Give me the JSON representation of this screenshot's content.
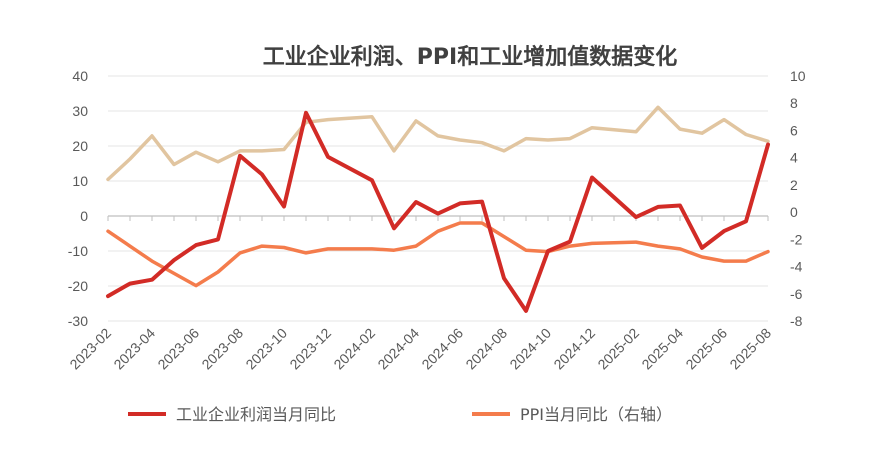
{
  "chart_data": {
    "type": "line",
    "title": "工业企业利润、PPI和工业增加值数据变化",
    "xlabel": "",
    "ylabel": "",
    "ylim": [
      -30,
      40
    ],
    "y2lim": [
      -8,
      10
    ],
    "yticks": [
      -30,
      -20,
      -10,
      0,
      10,
      20,
      30,
      40
    ],
    "y2ticks": [
      -8,
      -6,
      -4,
      -2,
      0,
      2,
      4,
      6,
      8,
      10
    ],
    "x": [
      "2023-02",
      "2023-03",
      "2023-04",
      "2023-05",
      "2023-06",
      "2023-07",
      "2023-08",
      "2023-09",
      "2023-10",
      "2023-11",
      "2023-12",
      "2024-01",
      "2024-02",
      "2024-03",
      "2024-04",
      "2024-05",
      "2024-06",
      "2024-07",
      "2024-08",
      "2024-09",
      "2024-10",
      "2024-11",
      "2024-12",
      "2025-01",
      "2025-02",
      "2025-03",
      "2025-04",
      "2025-05",
      "2025-06",
      "2025-07",
      "2025-08"
    ],
    "xtick_labels": [
      "2023-02",
      "2023-04",
      "2023-06",
      "2023-08",
      "2023-10",
      "2023-12",
      "2024-02",
      "2024-04",
      "2024-06",
      "2024-08",
      "2024-10",
      "2024-12",
      "2025-02",
      "2025-04",
      "2025-06",
      "2025-08"
    ],
    "legend_position": "bottom",
    "grid": true,
    "series": [
      {
        "name": "工业企业利润当月同比",
        "axis": "left",
        "color": "#d22b26",
        "values": [
          -22.9,
          -19.3,
          -18.2,
          -12.6,
          -8.3,
          -6.7,
          17.2,
          11.9,
          2.7,
          29.5,
          16.9,
          null,
          10.2,
          -3.5,
          4.0,
          0.7,
          3.6,
          4.1,
          -17.8,
          -27.1,
          -10.0,
          -7.3,
          11.0,
          null,
          -0.3,
          2.6,
          3.0,
          -9.1,
          -4.3,
          -1.5,
          20.4
        ]
      },
      {
        "name": "PPI当月同比（右轴）",
        "axis": "right",
        "color": "#f47c4c",
        "values": [
          -1.4,
          null,
          -3.6,
          null,
          -5.4,
          -4.4,
          -3.0,
          -2.5,
          -2.6,
          -3.0,
          -2.7,
          null,
          -2.7,
          -2.8,
          -2.5,
          -1.4,
          -0.8,
          -0.8,
          -1.8,
          -2.8,
          -2.9,
          -2.5,
          -2.3,
          null,
          -2.2,
          -2.5,
          -2.7,
          -3.3,
          -3.6,
          -3.6,
          -2.9
        ]
      },
      {
        "axis": "right",
        "color": "#e1c5a0",
        "values": [
          2.4,
          3.9,
          5.6,
          3.5,
          4.4,
          3.7,
          4.5,
          4.5,
          4.6,
          6.6,
          6.8,
          null,
          7.0,
          4.5,
          6.7,
          5.6,
          5.3,
          5.1,
          4.5,
          5.4,
          5.3,
          5.4,
          6.2,
          null,
          5.9,
          7.7,
          6.1,
          5.8,
          6.8,
          5.7,
          5.2
        ]
      }
    ]
  }
}
